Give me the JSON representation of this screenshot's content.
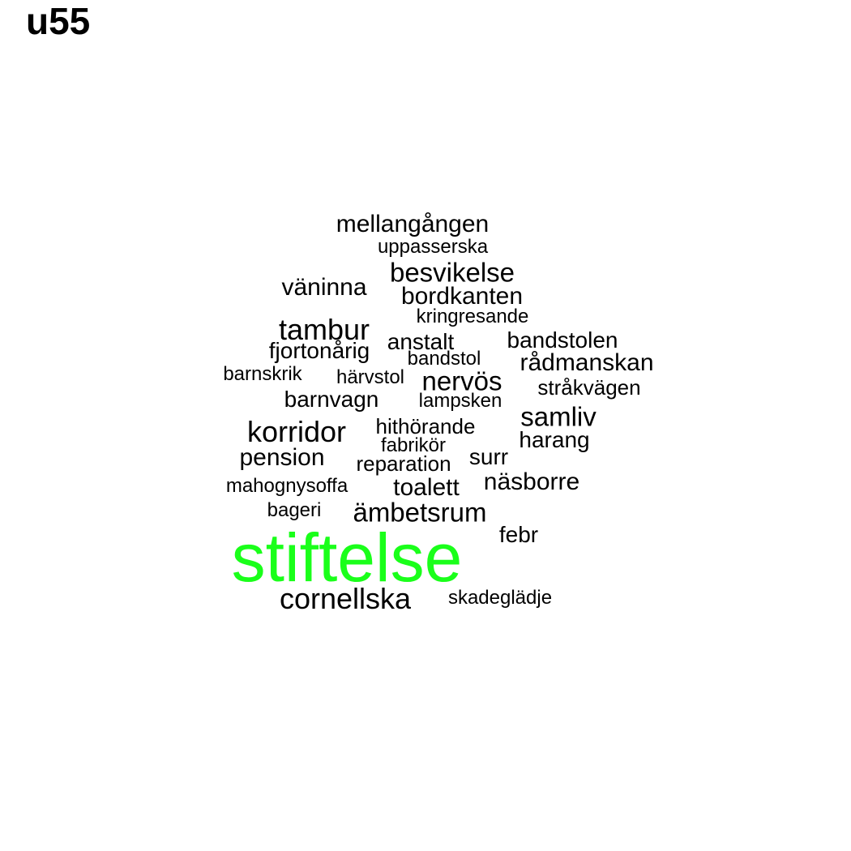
{
  "title": "u55",
  "colors": {
    "default": "#000000",
    "highlight": "#1aff1a"
  },
  "words": [
    {
      "text": "mellangången",
      "highlight": false
    },
    {
      "text": "uppasserska",
      "highlight": false
    },
    {
      "text": "besvikelse",
      "highlight": false
    },
    {
      "text": "väninna",
      "highlight": false
    },
    {
      "text": "bordkanten",
      "highlight": false
    },
    {
      "text": "kringresande",
      "highlight": false
    },
    {
      "text": "tambur",
      "highlight": false
    },
    {
      "text": "anstalt",
      "highlight": false
    },
    {
      "text": "bandstolen",
      "highlight": false
    },
    {
      "text": "fjortonårig",
      "highlight": false
    },
    {
      "text": "bandstol",
      "highlight": false
    },
    {
      "text": "rådmanskan",
      "highlight": false
    },
    {
      "text": "barnskrik",
      "highlight": false
    },
    {
      "text": "härvstol",
      "highlight": false
    },
    {
      "text": "nervös",
      "highlight": false
    },
    {
      "text": "stråkvägen",
      "highlight": false
    },
    {
      "text": "barnvagn",
      "highlight": false
    },
    {
      "text": "lampsken",
      "highlight": false
    },
    {
      "text": "samliv",
      "highlight": false
    },
    {
      "text": "korridor",
      "highlight": false
    },
    {
      "text": "hithörande",
      "highlight": false
    },
    {
      "text": "fabrikör",
      "highlight": false
    },
    {
      "text": "harang",
      "highlight": false
    },
    {
      "text": "pension",
      "highlight": false
    },
    {
      "text": "surr",
      "highlight": false
    },
    {
      "text": "reparation",
      "highlight": false
    },
    {
      "text": "näsborre",
      "highlight": false
    },
    {
      "text": "mahognysoffa",
      "highlight": false
    },
    {
      "text": "toalett",
      "highlight": false
    },
    {
      "text": "bageri",
      "highlight": false
    },
    {
      "text": "ämbetsrum",
      "highlight": false
    },
    {
      "text": "febr",
      "highlight": false
    },
    {
      "text": "stiftelse",
      "highlight": true
    },
    {
      "text": "cornellska",
      "highlight": false
    },
    {
      "text": "skadeglädje",
      "highlight": false
    }
  ]
}
